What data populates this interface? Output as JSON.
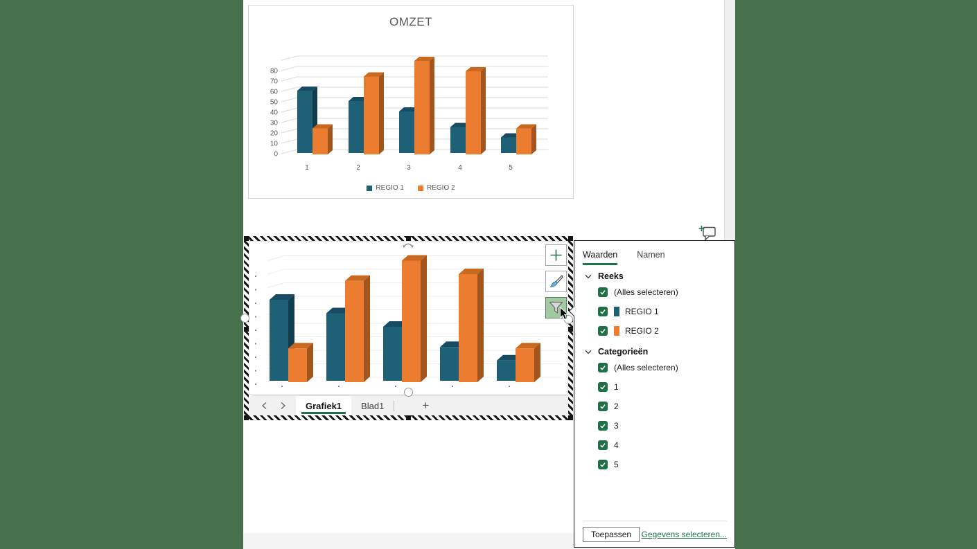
{
  "colors": {
    "desktop_green": "#47704D",
    "excel_green": "#217346",
    "checkbox_green": "#1E7145",
    "series1": "#1E6076",
    "series2": "#EC7C30",
    "axis_text": "#595959"
  },
  "chart_data": [
    {
      "id": "preview",
      "type": "bar",
      "variant": "3d-clustered-column",
      "title": "OMZET",
      "categories": [
        "1",
        "2",
        "3",
        "4",
        "5"
      ],
      "series": [
        {
          "name": "REGIO 1",
          "color": "#1E6076",
          "color_top": "#164B61",
          "color_side": "#123D4E",
          "values": [
            60,
            50,
            40,
            25,
            15
          ]
        },
        {
          "name": "REGIO 2",
          "color": "#EC7C30",
          "color_top": "#C9681F",
          "color_side": "#A3551E",
          "values": [
            25,
            75,
            90,
            80,
            25
          ]
        }
      ],
      "ylim": [
        0,
        90
      ],
      "ytick_step": 10,
      "ytick_labels": [
        "0",
        "10",
        "20",
        "30",
        "40",
        "50",
        "60",
        "70",
        "80"
      ],
      "grid": true,
      "legend_position": "bottom",
      "axis_labels_visible": true
    },
    {
      "id": "sheet",
      "type": "bar",
      "variant": "3d-clustered-column",
      "title": "",
      "categories": [
        "1",
        "2",
        "3",
        "4",
        "5"
      ],
      "series": [
        {
          "name": "REGIO 1",
          "color": "#1E6076",
          "color_top": "#164B61",
          "color_side": "#123D4E",
          "values": [
            60,
            50,
            40,
            25,
            15
          ]
        },
        {
          "name": "REGIO 2",
          "color": "#EC7C30",
          "color_top": "#C9681F",
          "color_side": "#A3551E",
          "values": [
            25,
            75,
            90,
            80,
            25
          ]
        }
      ],
      "ylim": [
        0,
        90
      ],
      "ytick_step": 10,
      "grid": true,
      "legend_position": "none",
      "axis_labels_visible": false
    }
  ],
  "chart_tools": [
    {
      "name": "add-chart-element",
      "glyph": "plus-icon",
      "active": false
    },
    {
      "name": "chart-styles",
      "glyph": "brush-icon",
      "active": false
    },
    {
      "name": "chart-filters",
      "glyph": "funnel-icon",
      "active": true
    }
  ],
  "filter_panel": {
    "tabs": [
      {
        "label": "Waarden",
        "active": true
      },
      {
        "label": "Namen",
        "active": false
      }
    ],
    "sections": [
      {
        "title": "Reeks",
        "items": [
          {
            "label": "(Alles selecteren)",
            "checked": true
          },
          {
            "label": "REGIO 1",
            "checked": true,
            "swatch": "#1E6076"
          },
          {
            "label": "REGIO 2",
            "checked": true,
            "swatch": "#EC7C30"
          }
        ]
      },
      {
        "title": "Categorieën",
        "items": [
          {
            "label": "(Alles selecteren)",
            "checked": true
          },
          {
            "label": "1",
            "checked": true
          },
          {
            "label": "2",
            "checked": true
          },
          {
            "label": "3",
            "checked": true
          },
          {
            "label": "4",
            "checked": true
          },
          {
            "label": "5",
            "checked": true
          }
        ]
      }
    ],
    "apply_label": "Toepassen",
    "select_data_label": "Gegevens selecteren..."
  },
  "sheet_tabs": {
    "tabs": [
      {
        "label": "Grafiek1",
        "active": true
      },
      {
        "label": "Blad1",
        "active": false
      }
    ],
    "new_sheet_label": "+"
  }
}
